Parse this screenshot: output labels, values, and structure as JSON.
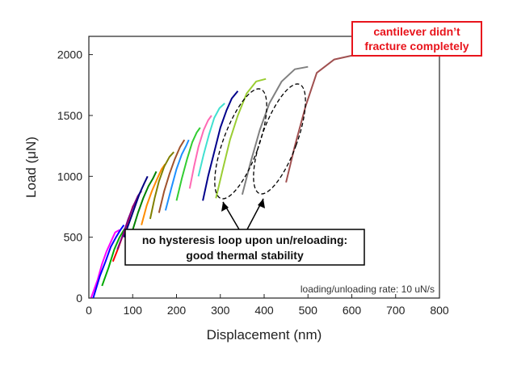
{
  "chart_data": {
    "type": "line",
    "title": "",
    "xlabel": "Displacement (nm)",
    "ylabel": "Load (μN)",
    "xlim": [
      0,
      800
    ],
    "ylim": [
      0,
      2150
    ],
    "x_ticks": [
      0,
      100,
      200,
      300,
      400,
      500,
      600,
      700,
      800
    ],
    "y_ticks": [
      0,
      500,
      1000,
      1500,
      2000
    ],
    "grid": false,
    "legend": "none",
    "annotations": {
      "rate_note": "loading/unloading rate: 10 uN/s",
      "red_box_line1": "cantilever didn’t",
      "red_box_line2": "fracture completely",
      "callout_line1": "no hysteresis loop upon un/reloading:",
      "callout_line2": "good thermal stability"
    },
    "series": [
      {
        "color": "#ff00ff",
        "x": [
          5,
          20,
          30,
          40,
          50,
          60,
          70
        ],
        "y": [
          0,
          150,
          280,
          380,
          460,
          540,
          560
        ]
      },
      {
        "color": "#0000ff",
        "x": [
          10,
          25,
          38,
          50,
          62,
          72,
          80
        ],
        "y": [
          0,
          180,
          300,
          420,
          500,
          560,
          600
        ]
      },
      {
        "color": "#00aa00",
        "x": [
          30,
          45,
          58,
          70,
          80,
          88
        ],
        "y": [
          100,
          250,
          400,
          500,
          560,
          600
        ]
      },
      {
        "color": "#ff0000",
        "x": [
          55,
          68,
          80,
          92,
          100,
          108
        ],
        "y": [
          300,
          420,
          540,
          660,
          750,
          800
        ]
      },
      {
        "color": "#800080",
        "x": [
          65,
          78,
          90,
          102,
          112,
          120
        ],
        "y": [
          400,
          520,
          650,
          760,
          840,
          880
        ]
      },
      {
        "color": "#000080",
        "x": [
          80,
          92,
          104,
          116,
          126,
          134
        ],
        "y": [
          500,
          620,
          740,
          860,
          940,
          1000
        ]
      },
      {
        "color": "#008000",
        "x": [
          100,
          112,
          124,
          136,
          146,
          154
        ],
        "y": [
          560,
          700,
          820,
          920,
          980,
          1040
        ]
      },
      {
        "color": "#ff8c00",
        "x": [
          120,
          132,
          144,
          156,
          166,
          174
        ],
        "y": [
          600,
          760,
          880,
          980,
          1060,
          1100
        ]
      },
      {
        "color": "#808000",
        "x": [
          140,
          150,
          160,
          172,
          184,
          194
        ],
        "y": [
          650,
          820,
          960,
          1080,
          1160,
          1200
        ]
      },
      {
        "color": "#a0522d",
        "x": [
          160,
          172,
          184,
          196,
          208,
          218
        ],
        "y": [
          700,
          880,
          1020,
          1140,
          1240,
          1300
        ]
      },
      {
        "color": "#1e90ff",
        "x": [
          175,
          188,
          200,
          212,
          222,
          228
        ],
        "y": [
          720,
          900,
          1060,
          1180,
          1250,
          1300
        ]
      },
      {
        "color": "#32cd32",
        "x": [
          200,
          212,
          224,
          236,
          246,
          254
        ],
        "y": [
          800,
          980,
          1140,
          1280,
          1360,
          1400
        ]
      },
      {
        "color": "#ff69b4",
        "x": [
          230,
          240,
          250,
          262,
          272,
          280
        ],
        "y": [
          900,
          1080,
          1240,
          1380,
          1460,
          1500
        ]
      },
      {
        "color": "#40e0d0",
        "x": [
          250,
          262,
          274,
          286,
          298,
          310
        ],
        "y": [
          1000,
          1180,
          1340,
          1480,
          1560,
          1600
        ]
      },
      {
        "color": "#00008b",
        "x": [
          260,
          272,
          286,
          300,
          314,
          326,
          340
        ],
        "y": [
          800,
          1000,
          1200,
          1400,
          1540,
          1640,
          1700
        ]
      },
      {
        "color": "#9acd32",
        "x": [
          290,
          305,
          322,
          340,
          360,
          382,
          404
        ],
        "y": [
          820,
          1050,
          1300,
          1500,
          1680,
          1780,
          1800
        ]
      },
      {
        "color": "#808080",
        "x": [
          350,
          368,
          390,
          412,
          440,
          470,
          500
        ],
        "y": [
          850,
          1100,
          1380,
          1600,
          1780,
          1880,
          1900
        ]
      },
      {
        "color": "#a05050",
        "x": [
          450,
          470,
          495,
          520,
          560,
          610,
          660,
          700,
          740
        ],
        "y": [
          950,
          1250,
          1580,
          1850,
          1960,
          2000,
          2000,
          2000,
          2000
        ]
      }
    ]
  }
}
